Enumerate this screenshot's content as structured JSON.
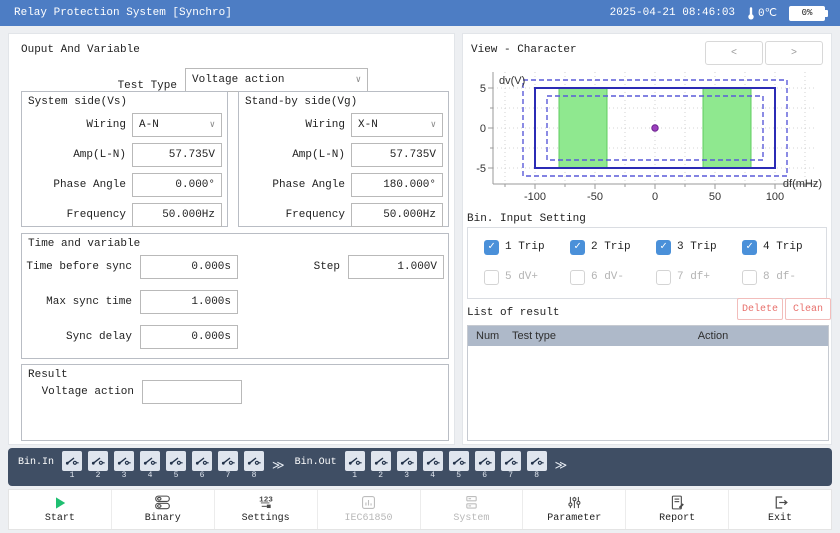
{
  "titlebar": {
    "title": "Relay Protection System [Synchro]",
    "datetime": "2025-04-21 08:46:03",
    "temperature": "0℃",
    "battery_level": "0%"
  },
  "left_panel": {
    "heading": "Ouput And Variable",
    "test_type": {
      "label": "Test Type",
      "value": "Voltage action"
    },
    "system_side": {
      "title": "System side(Vs)",
      "fields": [
        {
          "label": "Wiring",
          "value": "A-N",
          "control": "select"
        },
        {
          "label": "Amp(L-N)",
          "value": "57.735V",
          "control": "input"
        },
        {
          "label": "Phase Angle",
          "value": "0.000°",
          "control": "input"
        },
        {
          "label": "Frequency",
          "value": "50.000Hz",
          "control": "input"
        }
      ]
    },
    "standby_side": {
      "title": "Stand-by side(Vg)",
      "fields": [
        {
          "label": "Wiring",
          "value": "X-N",
          "control": "select"
        },
        {
          "label": "Amp(L-N)",
          "value": "57.735V",
          "control": "input"
        },
        {
          "label": "Phase Angle",
          "value": "180.000°",
          "control": "input"
        },
        {
          "label": "Frequency",
          "value": "50.000Hz",
          "control": "input"
        }
      ]
    },
    "time_section": {
      "title": "Time and variable",
      "fields": [
        {
          "label": "Time before sync",
          "value": "0.000s"
        },
        {
          "label": "Max sync time",
          "value": "1.000s"
        },
        {
          "label": "Sync delay",
          "value": "0.000s"
        }
      ],
      "step": {
        "label": "Step",
        "value": "1.000V"
      }
    },
    "result_section": {
      "title": "Result",
      "field": {
        "label": "Voltage action",
        "value": ""
      }
    }
  },
  "right_panel": {
    "heading": "View - Character",
    "nav": {
      "prev": "<",
      "next": ">"
    },
    "chart": {
      "x_label": "df(mHz)",
      "y_label": "dv(V)",
      "x_ticks": [
        -100,
        -50,
        0,
        50,
        100
      ],
      "y_ticks": [
        5,
        0,
        -5
      ],
      "x_range": [
        -135,
        135
      ],
      "y_range": [
        -7,
        7
      ],
      "x_grid_step": 25,
      "y_grid_step": 2.5,
      "outer_dashed_rect": [
        -110,
        -6,
        110,
        6
      ],
      "solid_rect": [
        -100,
        -5,
        100,
        5
      ],
      "inner_dashed_rect": [
        -90,
        -4,
        90,
        4
      ],
      "green_zones": [
        [
          -80,
          -5,
          -40,
          5
        ],
        [
          40,
          -5,
          80,
          5
        ]
      ],
      "point": [
        0,
        0
      ]
    },
    "bin_input": {
      "title": "Bin. Input Setting",
      "items": [
        {
          "label": "1 Trip",
          "checked": true
        },
        {
          "label": "2 Trip",
          "checked": true
        },
        {
          "label": "3 Trip",
          "checked": true
        },
        {
          "label": "4 Trip",
          "checked": true
        },
        {
          "label": "5 dV+",
          "checked": false
        },
        {
          "label": "6 dV-",
          "checked": false
        },
        {
          "label": "7 df+",
          "checked": false
        },
        {
          "label": "8 df-",
          "checked": false
        }
      ]
    },
    "results": {
      "title": "List of result",
      "delete_label": "Delete",
      "clean_label": "Clean",
      "columns": [
        "Num",
        "Test type",
        "Action"
      ],
      "rows": []
    }
  },
  "bin_bar": {
    "in_label": "Bin.In",
    "out_label": "Bin.Out",
    "chevron": "≫",
    "in_channels": [
      "1",
      "2",
      "3",
      "4",
      "5",
      "6",
      "7",
      "8"
    ],
    "out_channels": [
      "1",
      "2",
      "3",
      "4",
      "5",
      "6",
      "7",
      "8"
    ]
  },
  "toolbar": {
    "items": [
      {
        "label": "Start",
        "icon": "play-icon",
        "enabled": true
      },
      {
        "label": "Binary",
        "icon": "binary-icon",
        "enabled": true
      },
      {
        "label": "Settings",
        "icon": "settings-123-icon",
        "icon_text": "123",
        "enabled": true
      },
      {
        "label": "IEC61850",
        "icon": "iec61850-icon",
        "enabled": false
      },
      {
        "label": "System",
        "icon": "system-icon",
        "enabled": false
      },
      {
        "label": "Parameter",
        "icon": "parameter-sliders-icon",
        "enabled": true
      },
      {
        "label": "Report",
        "icon": "report-icon",
        "enabled": true
      },
      {
        "label": "Exit",
        "icon": "exit-icon",
        "enabled": true
      }
    ]
  },
  "colors": {
    "titlebar": "#4d7dc4",
    "accent_blue": "#4a90d9",
    "bin_bar": "#3f4e64",
    "green_zone": "#8fe88f",
    "green_border": "#5fcc5f",
    "solid_rect": "#2b2bb5",
    "dashed_rect": "#5a5ad8",
    "point": "#9b3fbd",
    "start_green": "#1fbf71",
    "table_header": "#aeb9c9",
    "danger": "#e8716d"
  }
}
